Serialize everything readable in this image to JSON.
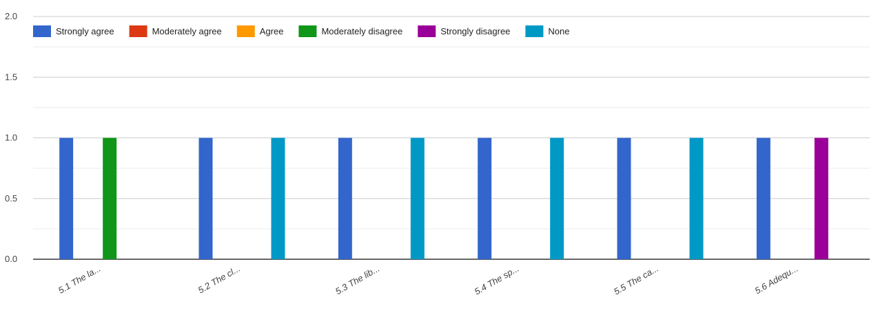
{
  "chart_data": {
    "type": "bar",
    "categories": [
      "5.1 The la...",
      "5.2 The cl...",
      "5.3 The lib...",
      "5.4 The sp...",
      "5.5 The ca...",
      "5.6 Adequ..."
    ],
    "series": [
      {
        "name": "Strongly agree",
        "color": "#3366cc",
        "values": [
          1,
          1,
          1,
          1,
          1,
          1
        ]
      },
      {
        "name": "Moderately agree",
        "color": "#dc3912",
        "values": [
          0,
          0,
          0,
          0,
          0,
          0
        ]
      },
      {
        "name": "Agree",
        "color": "#ff9900",
        "values": [
          0,
          0,
          0,
          0,
          0,
          0
        ]
      },
      {
        "name": "Moderately disagree",
        "color": "#109618",
        "values": [
          1,
          0,
          0,
          0,
          0,
          0
        ]
      },
      {
        "name": "Strongly disagree",
        "color": "#990099",
        "values": [
          0,
          0,
          0,
          0,
          0,
          1
        ]
      },
      {
        "name": "None",
        "color": "#0099c6",
        "values": [
          0,
          1,
          1,
          1,
          1,
          0
        ]
      }
    ],
    "yticks": [
      "0.0",
      "0.5",
      "1.0",
      "1.5",
      "2.0"
    ],
    "ylim": [
      0,
      2
    ],
    "grid": true,
    "legend_position": "top"
  }
}
